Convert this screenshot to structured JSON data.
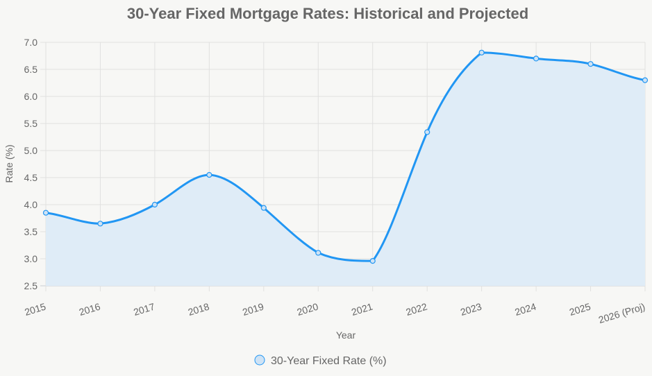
{
  "chart_data": {
    "type": "line",
    "title": "30-Year Fixed Mortgage Rates: Historical and Projected",
    "xlabel": "Year",
    "ylabel": "Rate (%)",
    "categories": [
      "2015",
      "2016",
      "2017",
      "2018",
      "2019",
      "2020",
      "2021",
      "2022",
      "2023",
      "2024",
      "2025",
      "2026 (Proj)"
    ],
    "series": [
      {
        "name": "30-Year Fixed Rate (%)",
        "values": [
          3.85,
          3.65,
          4.0,
          4.55,
          3.94,
          3.11,
          2.96,
          5.34,
          6.81,
          6.7,
          6.6,
          6.3
        ]
      }
    ],
    "ylim": [
      2.5,
      7.0
    ],
    "yticks": [
      "2.5",
      "3.0",
      "3.5",
      "4.0",
      "4.5",
      "5.0",
      "5.5",
      "6.0",
      "6.5",
      "7.0"
    ],
    "grid": true,
    "fill": true,
    "legend_position": "bottom",
    "colors": {
      "line": "#2196f3",
      "fill": "#dfecf7",
      "point_fill": "#cfe3f5"
    }
  }
}
